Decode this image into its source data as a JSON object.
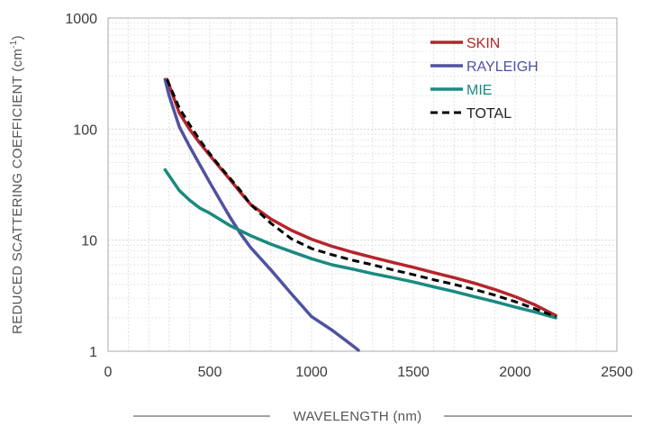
{
  "chart_data": {
    "type": "line",
    "xlabel": "WAVELENGTH (nm)",
    "ylabel": "REDUCED SCATTERING COEFFICIENT (cm",
    "ylabel_superscript": "-1",
    "ylabel_suffix": ")",
    "xlim": [
      0,
      2500
    ],
    "ylim": [
      1,
      1000
    ],
    "y_scale": "log",
    "x_ticks": [
      "0",
      "500",
      "1000",
      "1500",
      "2000",
      "2500"
    ],
    "y_ticks": [
      "1",
      "10",
      "100",
      "1000"
    ],
    "grid": true,
    "legend_position": "top-right",
    "series": [
      {
        "name": "SKIN",
        "color": "#b5252a",
        "dash": "solid",
        "x": [
          290,
          350,
          400,
          450,
          500,
          550,
          600,
          650,
          700,
          800,
          900,
          1000,
          1100,
          1200,
          1300,
          1400,
          1500,
          1600,
          1700,
          1800,
          1900,
          2000,
          2100,
          2200
        ],
        "y": [
          280,
          140,
          100,
          75,
          58,
          45,
          35,
          27,
          21,
          15.5,
          12.3,
          10.2,
          8.8,
          7.8,
          7.0,
          6.3,
          5.7,
          5.1,
          4.6,
          4.1,
          3.6,
          3.1,
          2.6,
          2.1
        ]
      },
      {
        "name": "RAYLEIGH",
        "color": "#5052a0",
        "dash": "solid",
        "x": [
          280,
          300,
          350,
          400,
          450,
          500,
          550,
          600,
          650,
          700,
          800,
          900,
          1000,
          1100,
          1200,
          1230
        ],
        "y": [
          280,
          200,
          105,
          70,
          48,
          33,
          23,
          16,
          11.5,
          8.6,
          5.4,
          3.3,
          2.05,
          1.55,
          1.13,
          1.02
        ]
      },
      {
        "name": "MIE",
        "color": "#1a8a80",
        "dash": "solid",
        "x": [
          280,
          350,
          400,
          450,
          500,
          600,
          700,
          800,
          900,
          1000,
          1100,
          1200,
          1300,
          1400,
          1500,
          1600,
          1700,
          1800,
          1900,
          2000,
          2100,
          2200
        ],
        "y": [
          43,
          28,
          23,
          19.5,
          17.5,
          13.5,
          11,
          9.2,
          7.9,
          6.8,
          6.0,
          5.5,
          5.0,
          4.6,
          4.2,
          3.8,
          3.45,
          3.1,
          2.8,
          2.5,
          2.25,
          2.0
        ]
      },
      {
        "name": "TOTAL",
        "color": "#000000",
        "dash": "dashed",
        "x": [
          290,
          350,
          400,
          450,
          500,
          550,
          600,
          650,
          700,
          800,
          900,
          1000,
          1100,
          1200,
          1300,
          1400,
          1500,
          1600,
          1700,
          1800,
          1900,
          2000,
          2100,
          2200
        ],
        "y": [
          280,
          155,
          110,
          80,
          60,
          46,
          36,
          28,
          21,
          14.2,
          10.3,
          8.4,
          7.4,
          6.6,
          6.0,
          5.4,
          4.9,
          4.4,
          4.0,
          3.6,
          3.2,
          2.8,
          2.4,
          2.05
        ]
      }
    ]
  }
}
